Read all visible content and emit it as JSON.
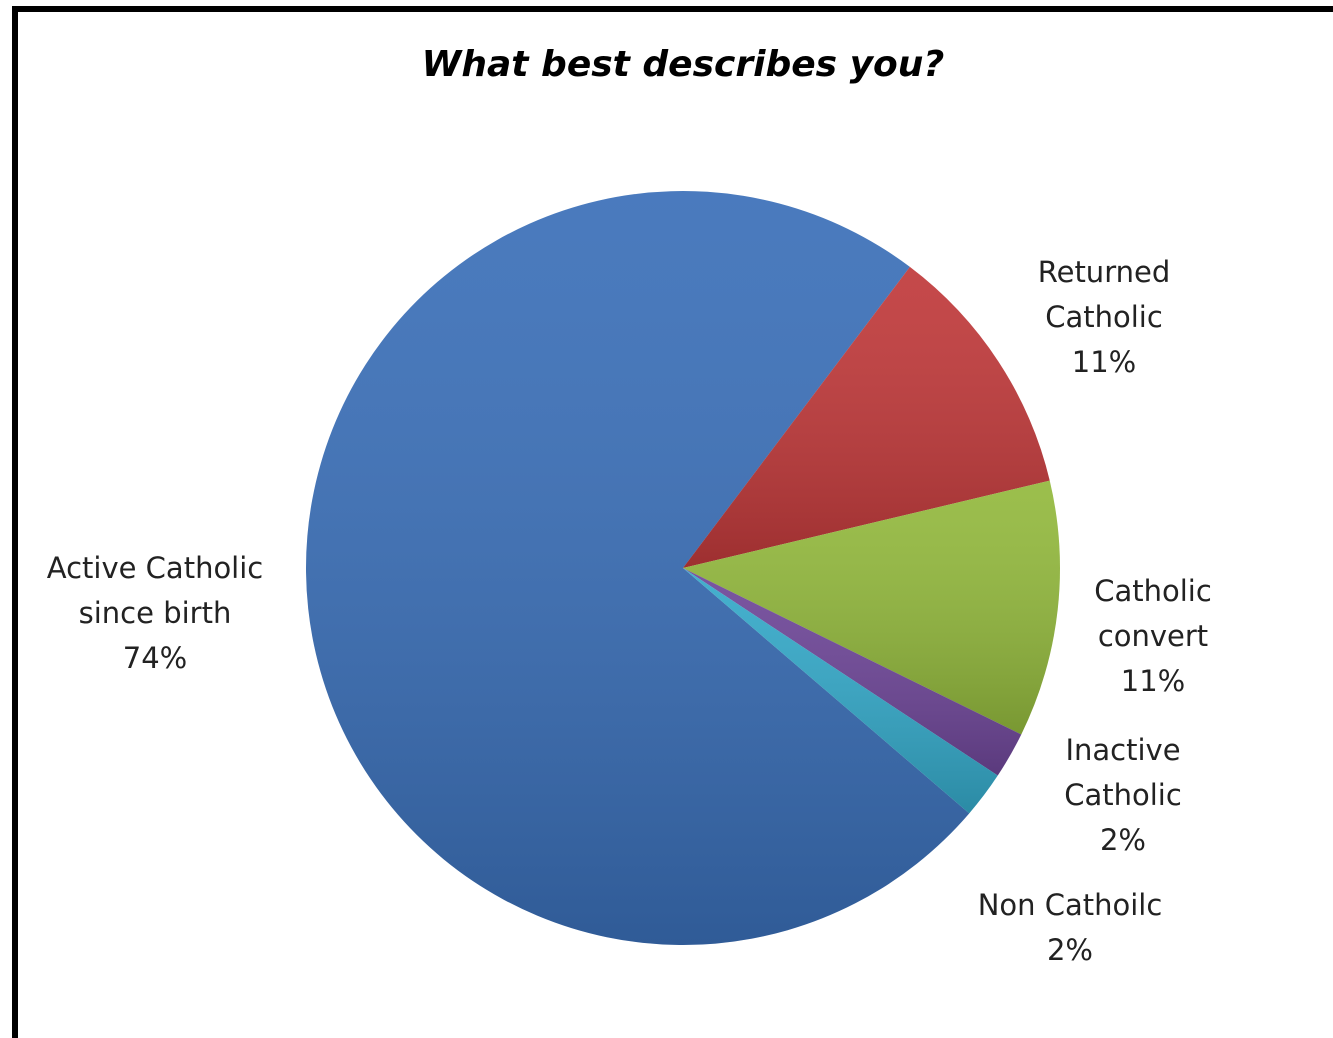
{
  "chart_data": {
    "type": "pie",
    "title": "What best describes you?",
    "slices": [
      {
        "name": "Active Catholic since birth",
        "label_lines": [
          "Active Catholic",
          "since birth"
        ],
        "pct_label": "74%",
        "value": 74,
        "color": "#3a6fb8"
      },
      {
        "name": "Returned Catholic",
        "label_lines": [
          "Returned",
          "Catholic"
        ],
        "pct_label": "11%",
        "value": 11,
        "color": "#c0393a"
      },
      {
        "name": "Catholic convert",
        "label_lines": [
          "Catholic",
          "convert"
        ],
        "pct_label": "11%",
        "value": 11,
        "color": "#93b93d"
      },
      {
        "name": "Inactive Catholic",
        "label_lines": [
          "Inactive",
          "Catholic"
        ],
        "pct_label": "2%",
        "value": 2,
        "color": "#6e4698"
      },
      {
        "name": "Non Cathoilc",
        "label_lines": [
          "Non Cathoilc"
        ],
        "pct_label": "2%",
        "value": 2,
        "color": "#34a9c9"
      }
    ],
    "legend": "none"
  }
}
